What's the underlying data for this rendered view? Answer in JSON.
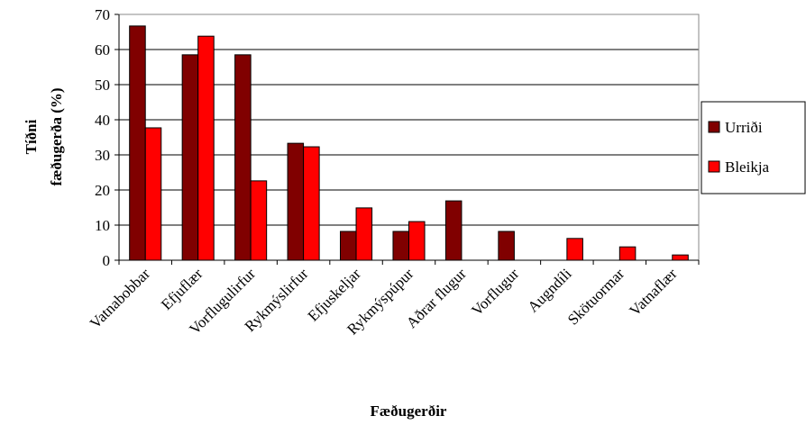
{
  "chart_data": {
    "type": "bar",
    "x_label": "Fæðugerðir",
    "y_label": [
      "Tíðni",
      "fæðugerða (%)"
    ],
    "categories": [
      "Vatnabobbar",
      "Efjuflær",
      "Vorflugulirfur",
      "Rykmýslirfur",
      "Efjuskeljar",
      "Rykmýspúpur",
      "Aðrar flugur",
      "Vorflugur",
      "Augndíli",
      "Skötuormar",
      "Vatnaflær"
    ],
    "series": [
      {
        "name": "Urriði",
        "color": "#800000",
        "values": [
          66.7,
          58.5,
          58.5,
          33.3,
          8.2,
          8.2,
          16.9,
          8.2,
          0,
          0,
          0
        ]
      },
      {
        "name": "Bleikja",
        "color": "#ff0000",
        "values": [
          37.7,
          63.8,
          22.6,
          32.3,
          14.9,
          11,
          0,
          0,
          6.2,
          3.8,
          1.5
        ]
      }
    ],
    "ylim": [
      0,
      70
    ],
    "yticks": [
      0,
      10,
      20,
      30,
      40,
      50,
      60,
      70
    ],
    "grid": true,
    "legend": "right"
  }
}
